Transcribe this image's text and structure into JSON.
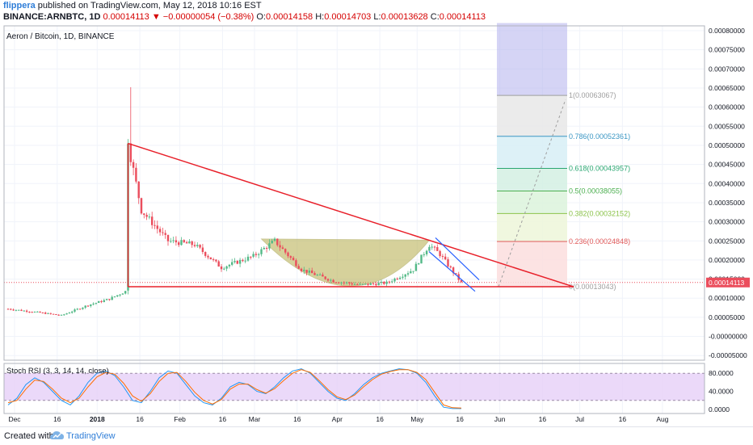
{
  "header": {
    "user": "flippera",
    "published": " published on TradingView.com, May 12, 2018 10:16 EST",
    "symbol": "BINANCE:ARNBTC, 1D",
    "last": "0.00014113",
    "change": "▼ −0.00000054 (−0.38%)",
    "o_label": "O:",
    "o": "0.00014158",
    "h_label": "H:",
    "h": "0.00014703",
    "l_label": "L:",
    "l": "0.00013628",
    "c_label": "C:",
    "c": "0.00014113"
  },
  "footer": {
    "created": "Created with",
    "brand": "TradingView"
  },
  "colors": {
    "up": "#53b987",
    "down": "#eb4d5c",
    "trendline": "#e8202a",
    "fib_zone_top": "#b3b0ec",
    "fib_zone_mid": "#e0e0e0",
    "rsi_band": "#e6d0f7",
    "k_line": "#2196f3",
    "d_line": "#ff6d00",
    "cup": "#b5ad4b",
    "channel": "#2962ff"
  },
  "chart_data": [
    {
      "type": "candlestick",
      "title": "Aeron / Bitcoin, 1D, BINANCE",
      "price_axis_ticks": [
        "0.00080000",
        "0.00075000",
        "0.00070000",
        "0.00065000",
        "0.00060000",
        "0.00055000",
        "0.00050000",
        "0.00045000",
        "0.00040000",
        "0.00035000",
        "0.00030000",
        "0.00025000",
        "0.00020000",
        "0.00015000",
        "0.00010000",
        "0.00005000",
        "-0.00000000",
        "-0.00005000"
      ],
      "time_axis_ticks": [
        "Dec",
        "16",
        "2018",
        "16",
        "Feb",
        "16",
        "Mar",
        "16",
        "Apr",
        "16",
        "May",
        "16",
        "Jun",
        "16",
        "Jul",
        "16",
        "Aug"
      ],
      "ylim": [
        -5e-05,
        0.00082
      ],
      "last_price": "0.00014113",
      "fib_levels": [
        {
          "label": "1(0.00063067)",
          "value": 0.00063067,
          "color": "#9e9e9e"
        },
        {
          "label": "0.786(0.00052361)",
          "value": 0.00052361,
          "color": "#3b97c4"
        },
        {
          "label": "0.618(0.00043957)",
          "value": 0.00043957,
          "color": "#2aa671"
        },
        {
          "label": "0.5(0.00038055)",
          "value": 0.00038055,
          "color": "#4caf50"
        },
        {
          "label": "0.382(0.00032152)",
          "value": 0.00032152,
          "color": "#8bc34a"
        },
        {
          "label": "0.236(0.00024848)",
          "value": 0.00024848,
          "color": "#e05a5a"
        },
        {
          "label": "0(0.00013043)",
          "value": 0.00013043,
          "color": "#9e9e9e"
        }
      ],
      "price_path": [
        {
          "day": 0,
          "price": 7.2e-05
        },
        {
          "day": 10,
          "price": 6.4e-05
        },
        {
          "day": 20,
          "price": 5.5e-05
        },
        {
          "day": 30,
          "price": 8.2e-05
        },
        {
          "day": 38,
          "price": 9.8e-05
        },
        {
          "day": 44,
          "price": 0.000118
        },
        {
          "day": 45,
          "price": 0.000505
        },
        {
          "day": 50,
          "price": 0.00033
        },
        {
          "day": 55,
          "price": 0.00029
        },
        {
          "day": 60,
          "price": 0.00025
        },
        {
          "day": 70,
          "price": 0.00024
        },
        {
          "day": 80,
          "price": 0.00018
        },
        {
          "day": 92,
          "price": 0.00021
        },
        {
          "day": 100,
          "price": 0.00025
        },
        {
          "day": 110,
          "price": 0.000175
        },
        {
          "day": 122,
          "price": 0.000145
        },
        {
          "day": 132,
          "price": 0.000135
        },
        {
          "day": 142,
          "price": 0.00014
        },
        {
          "day": 152,
          "price": 0.000175
        },
        {
          "day": 158,
          "price": 0.00024
        },
        {
          "day": 162,
          "price": 0.000215
        },
        {
          "day": 170,
          "price": 0.00014
        }
      ]
    },
    {
      "type": "line",
      "title": "Stoch RSI (3, 3, 14, 14, close)",
      "ticks": [
        "80.0000",
        "40.0000",
        "0.0000"
      ],
      "ylim": [
        0,
        100
      ],
      "bands": [
        20,
        80
      ],
      "series": [
        {
          "values": [
            10,
            25,
            55,
            70,
            60,
            40,
            20,
            10,
            30,
            60,
            80,
            85,
            75,
            50,
            20,
            15,
            40,
            70,
            85,
            80,
            55,
            30,
            15,
            10,
            25,
            50,
            60,
            55,
            40,
            35,
            50,
            70,
            85,
            90,
            80,
            60,
            40,
            25,
            20,
            35,
            55,
            70,
            80,
            85,
            90,
            88,
            80,
            60,
            30,
            5,
            2,
            2
          ]
        },
        {
          "values": [
            15,
            20,
            45,
            65,
            62,
            45,
            25,
            15,
            25,
            50,
            72,
            82,
            78,
            58,
            30,
            18,
            35,
            62,
            80,
            82,
            62,
            38,
            20,
            12,
            22,
            45,
            56,
            56,
            44,
            36,
            46,
            64,
            80,
            88,
            82,
            64,
            44,
            28,
            22,
            32,
            50,
            66,
            78,
            84,
            88,
            88,
            82,
            66,
            38,
            10,
            4,
            3
          ]
        }
      ]
    }
  ]
}
